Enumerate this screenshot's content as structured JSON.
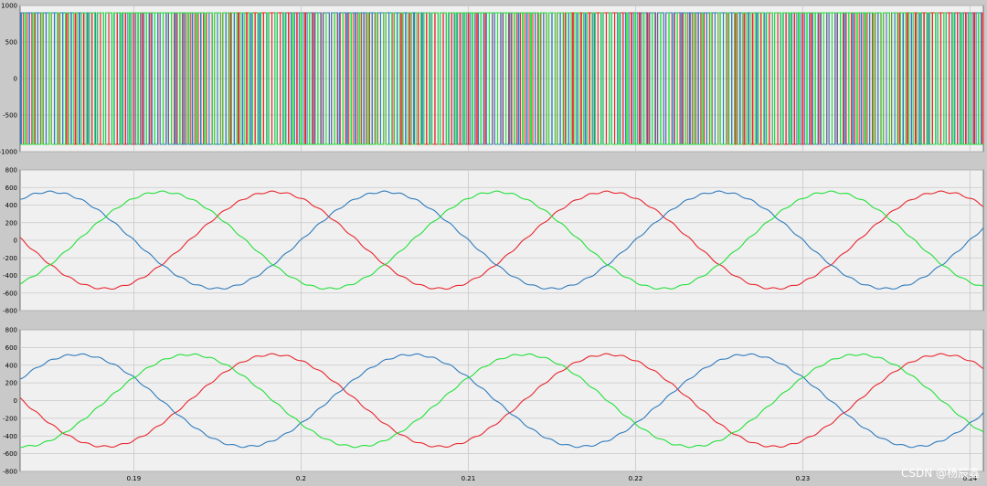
{
  "chart_data": [
    {
      "type": "line",
      "title": "",
      "ylim": [
        -1000,
        1000
      ],
      "yticks": [
        1000,
        500,
        0,
        -500,
        -1000
      ],
      "ytick_labels": [
        "1000",
        "500",
        "0",
        "-500",
        "-1000"
      ],
      "grid": true,
      "waveform": "pwm",
      "pwm_amplitude": 900,
      "series": [
        {
          "color": "#e8262d",
          "phase_deg": 120
        },
        {
          "color": "#2f7bbd",
          "phase_deg": 0
        },
        {
          "color": "#22e03a",
          "phase_deg": -120
        }
      ]
    },
    {
      "type": "line",
      "title": "",
      "ylim": [
        -800,
        800
      ],
      "yticks": [
        800,
        600,
        400,
        200,
        0,
        -200,
        -400,
        -600,
        -800
      ],
      "ytick_labels": [
        "800",
        "600",
        "400",
        "200",
        "0",
        "-200",
        "-400",
        "-600",
        "-800"
      ],
      "grid": true,
      "waveform": "sine",
      "amplitude": 550,
      "series": [
        {
          "color": "#e8262d",
          "phase_deg": 120
        },
        {
          "color": "#2f7bbd",
          "phase_deg": 0
        },
        {
          "color": "#22e03a",
          "phase_deg": -120
        }
      ]
    },
    {
      "type": "line",
      "title": "",
      "ylim": [
        -800,
        800
      ],
      "yticks": [
        800,
        600,
        400,
        200,
        0,
        -200,
        -400,
        -600,
        -800
      ],
      "ytick_labels": [
        "800",
        "600",
        "400",
        "200",
        "0",
        "-200",
        "-400",
        "-600",
        "-800"
      ],
      "grid": true,
      "waveform": "sine",
      "amplitude": 520,
      "series": [
        {
          "color": "#e8262d",
          "phase_deg": 120
        },
        {
          "color": "#2f7bbd",
          "phase_deg": -30
        },
        {
          "color": "#22e03a",
          "phase_deg": -150
        }
      ]
    }
  ],
  "shared_x": {
    "xlim": [
      0.1832,
      0.2408
    ],
    "xticks": [
      0.19,
      0.2,
      0.21,
      0.22,
      0.23,
      0.24
    ],
    "xtick_labels": [
      "0.19",
      "0.2",
      "0.21",
      "0.22",
      "0.23",
      "0.24"
    ],
    "frequency_hz": 50
  },
  "watermark": "CSDN @杨辰鑫"
}
